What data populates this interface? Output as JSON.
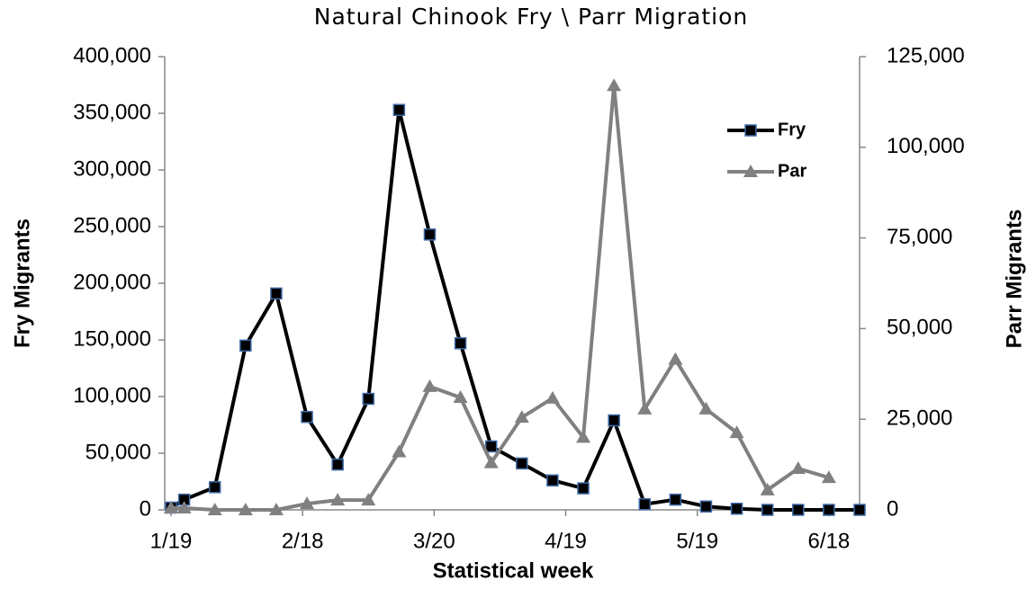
{
  "chart_data": {
    "type": "line",
    "title": "Natural Chinook Fry \\ Parr Migration",
    "x_label": "Statistical week",
    "y_label": "Fry  Migrants",
    "y2_label": "Parr Migrants",
    "x": [
      "1/19",
      "1/22",
      "1/29",
      "2/5",
      "2/12",
      "2/19",
      "2/26",
      "3/5",
      "3/12",
      "3/19",
      "3/26",
      "4/2",
      "4/9",
      "4/16",
      "4/23",
      "4/30",
      "5/7",
      "5/14",
      "5/21",
      "5/28",
      "6/4",
      "6/11",
      "6/18",
      "6/25"
    ],
    "series": [
      {
        "name": "Fry",
        "color": "#000000",
        "marker": "square",
        "values": [
          2000,
          9000,
          20000,
          145000,
          191000,
          82000,
          40000,
          98000,
          353000,
          243000,
          147000,
          56000,
          41000,
          26000,
          19000,
          79000,
          5000,
          9000,
          3000,
          1000,
          0,
          0,
          0,
          0
        ]
      },
      {
        "name": "Par",
        "color": "#808080",
        "marker": "triangle",
        "axis": "y2",
        "values": [
          500,
          500,
          0,
          0,
          0,
          1700,
          2700,
          2700,
          16000,
          34000,
          31000,
          13000,
          25500,
          30800,
          20000,
          117000,
          27800,
          41500,
          27800,
          21300,
          5500,
          11400,
          8900,
          null
        ]
      }
    ],
    "xlim": [
      "1/19",
      "6/25"
    ],
    "xticks": [
      "1/19",
      "2/18",
      "3/20",
      "4/19",
      "5/19",
      "6/18"
    ],
    "ylim": [
      0,
      400000
    ],
    "yticks": [
      0,
      {
        "value": 50000,
        "label": "50,000"
      },
      {
        "value": 100000,
        "label": "100,000"
      },
      {
        "value": 150000,
        "label": "150,000"
      },
      {
        "value": 200000,
        "label": "200,000"
      },
      {
        "value": 250000,
        "label": "250,000"
      },
      {
        "value": 300000,
        "label": "300,000"
      },
      {
        "value": 350000,
        "label": "350,000"
      },
      {
        "value": 400000,
        "label": "400,000"
      }
    ],
    "y2lim": [
      0,
      125000
    ],
    "y2ticks": [
      0,
      {
        "value": 25000,
        "label": "25,000"
      },
      {
        "value": 50000,
        "label": "50,000"
      },
      {
        "value": 75000,
        "label": "75,000"
      },
      {
        "value": 100000,
        "label": "100,000"
      },
      {
        "value": 125000,
        "label": "125,000"
      }
    ],
    "grid": false,
    "legend": "upper-right"
  }
}
